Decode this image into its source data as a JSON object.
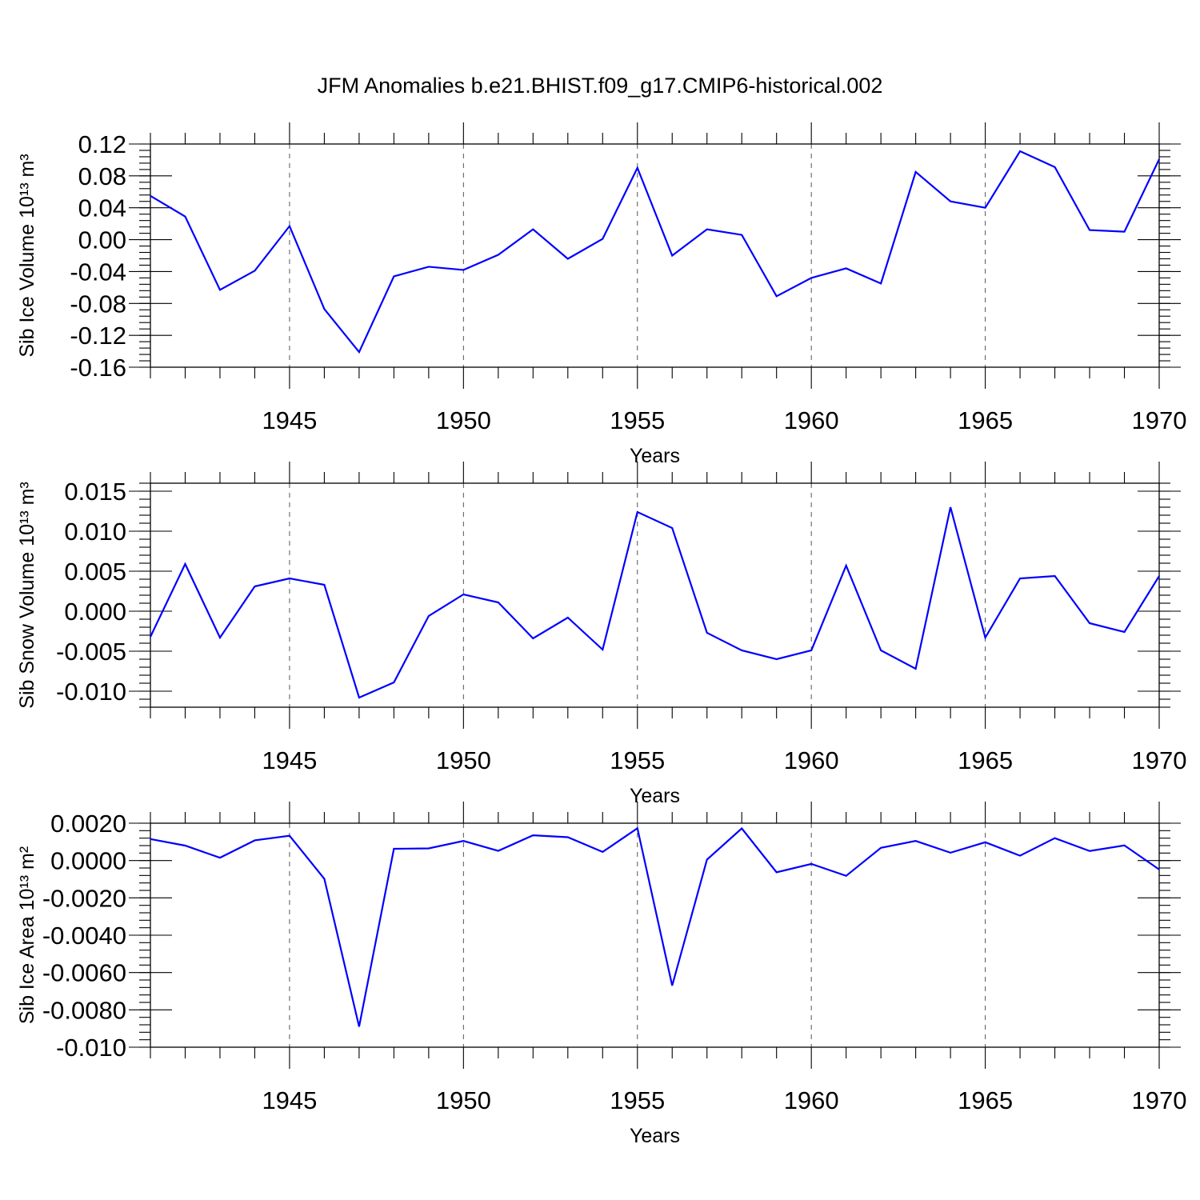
{
  "title": "JFM Anomalies b.e21.BHIST.f09_g17.CMIP6-historical.002",
  "colors": {
    "series": "#0000ff",
    "axis": "#000000",
    "grid": "#555555"
  },
  "chart_data": [
    {
      "type": "line",
      "ylabel": "Sib Ice Volume 10¹³ m³",
      "xlabel": "Years",
      "xlim": [
        1941,
        1970
      ],
      "ylim": [
        -0.16,
        0.12
      ],
      "yticks": [
        -0.16,
        -0.12,
        -0.08,
        -0.04,
        0.0,
        0.04,
        0.08,
        0.12
      ],
      "ytick_labels": [
        "-0.16",
        "-0.12",
        "-0.08",
        "-0.04",
        "0.00",
        "0.04",
        "0.08",
        "0.12"
      ],
      "ytick_minor_step": 0.008,
      "xticks": [
        1945,
        1950,
        1955,
        1960,
        1965,
        1970
      ],
      "xtick_labels": [
        "1945",
        "1950",
        "1955",
        "1960",
        "1965",
        "1970"
      ],
      "x": [
        1941,
        1942,
        1943,
        1944,
        1945,
        1946,
        1947,
        1948,
        1949,
        1950,
        1951,
        1952,
        1953,
        1954,
        1955,
        1956,
        1957,
        1958,
        1959,
        1960,
        1961,
        1962,
        1963,
        1964,
        1965,
        1966,
        1967,
        1968,
        1969,
        1970
      ],
      "series": [
        {
          "name": "Sib Ice Volume",
          "values": [
            0.055,
            0.029,
            -0.063,
            -0.039,
            0.017,
            -0.087,
            -0.141,
            -0.046,
            -0.034,
            -0.038,
            -0.019,
            0.013,
            -0.024,
            0.001,
            0.09,
            -0.02,
            0.013,
            0.006,
            -0.071,
            -0.048,
            -0.036,
            -0.055,
            0.085,
            0.048,
            0.04,
            0.111,
            0.091,
            0.012,
            0.01,
            0.101
          ]
        }
      ]
    },
    {
      "type": "line",
      "ylabel": "Sib Snow Volume 10¹³ m³",
      "xlabel": "Years",
      "xlim": [
        1941,
        1970
      ],
      "ylim": [
        -0.012,
        0.016
      ],
      "yticks": [
        -0.01,
        -0.005,
        0.0,
        0.005,
        0.01,
        0.015
      ],
      "ytick_labels": [
        "-0.010",
        "-0.005",
        "0.000",
        "0.005",
        "0.010",
        "0.015"
      ],
      "ytick_minor_step": 0.001,
      "xticks": [
        1945,
        1950,
        1955,
        1960,
        1965,
        1970
      ],
      "xtick_labels": [
        "1945",
        "1950",
        "1955",
        "1960",
        "1965",
        "1970"
      ],
      "x": [
        1941,
        1942,
        1943,
        1944,
        1945,
        1946,
        1947,
        1948,
        1949,
        1950,
        1951,
        1952,
        1953,
        1954,
        1955,
        1956,
        1957,
        1958,
        1959,
        1960,
        1961,
        1962,
        1963,
        1964,
        1965,
        1966,
        1967,
        1968,
        1969,
        1970
      ],
      "series": [
        {
          "name": "Sib Snow Volume",
          "values": [
            -0.0032,
            0.0059,
            -0.0033,
            0.0031,
            0.0041,
            0.0033,
            -0.0108,
            -0.0089,
            -0.0006,
            0.0021,
            0.0011,
            -0.0034,
            -0.0008,
            -0.0048,
            0.0124,
            0.0104,
            -0.0027,
            -0.0049,
            -0.006,
            -0.0049,
            0.0057,
            -0.0049,
            -0.0072,
            0.013,
            -0.0033,
            0.0041,
            0.0044,
            -0.0015,
            -0.0026,
            0.0044
          ]
        }
      ]
    },
    {
      "type": "line",
      "ylabel": "Sib Ice Area 10¹³ m²",
      "xlabel": "Years",
      "xlim": [
        1941,
        1970
      ],
      "ylim": [
        -0.01,
        0.002
      ],
      "yticks": [
        -0.01,
        -0.008,
        -0.006,
        -0.004,
        -0.002,
        0.0,
        0.002
      ],
      "ytick_labels": [
        "-0.010",
        "-0.0080",
        "-0.0060",
        "-0.0040",
        "-0.0020",
        "0.0000",
        "0.0020"
      ],
      "ytick_minor_step": 0.0004,
      "xticks": [
        1945,
        1950,
        1955,
        1960,
        1965,
        1970
      ],
      "xtick_labels": [
        "1945",
        "1950",
        "1955",
        "1960",
        "1965",
        "1970"
      ],
      "x": [
        1941,
        1942,
        1943,
        1944,
        1945,
        1946,
        1947,
        1948,
        1949,
        1950,
        1951,
        1952,
        1953,
        1954,
        1955,
        1956,
        1957,
        1958,
        1959,
        1960,
        1961,
        1962,
        1963,
        1964,
        1965,
        1966,
        1967,
        1968,
        1969,
        1970
      ],
      "series": [
        {
          "name": "Sib Ice Area",
          "values": [
            0.00115,
            0.0008,
            0.00015,
            0.00108,
            0.00133,
            -0.00098,
            -0.0089,
            0.00063,
            0.00065,
            0.00105,
            0.00052,
            0.00135,
            0.00125,
            0.00046,
            0.00173,
            -0.0067,
            5e-05,
            0.00172,
            -0.00063,
            -0.00018,
            -0.00082,
            0.00068,
            0.00105,
            0.00042,
            0.00098,
            0.00026,
            0.0012,
            0.00051,
            0.00081,
            -0.00048
          ]
        }
      ]
    }
  ]
}
